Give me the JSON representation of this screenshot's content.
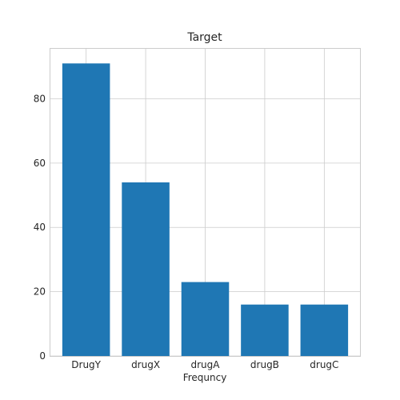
{
  "chart_data": {
    "type": "bar",
    "title": "Target",
    "xlabel": "Frequncy",
    "ylabel": "",
    "categories": [
      "DrugY",
      "drugX",
      "drugA",
      "drugB",
      "drugC"
    ],
    "values": [
      91,
      54,
      23,
      16,
      16
    ],
    "ylim": [
      0,
      95.55
    ],
    "yticks": [
      "0",
      "20",
      "40",
      "60",
      "80"
    ],
    "bar_color": "#1f77b4",
    "grid": true
  }
}
